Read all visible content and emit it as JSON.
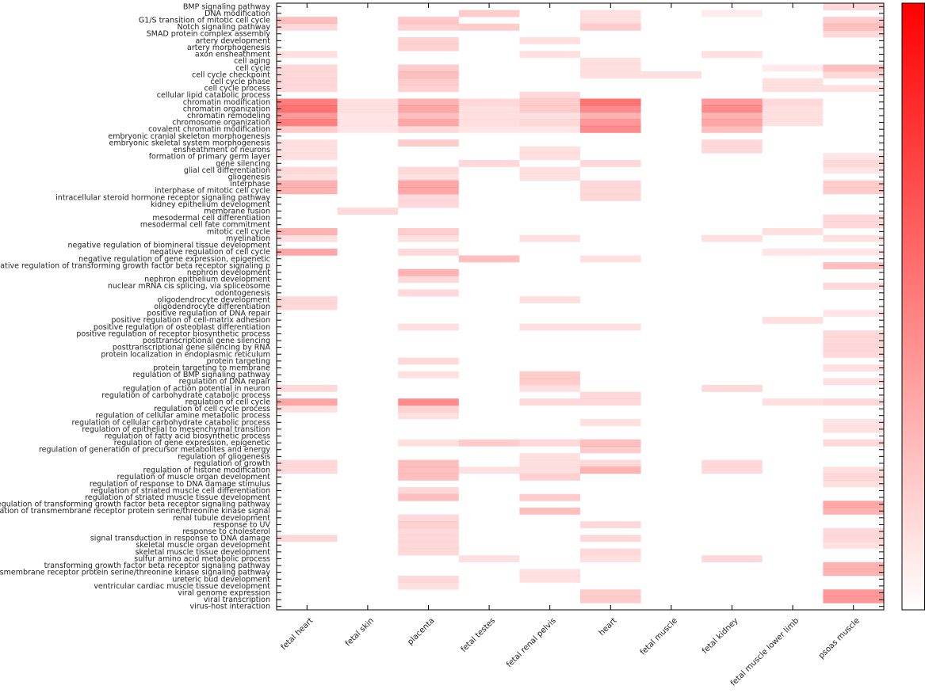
{
  "chart_data": {
    "type": "heatmap",
    "title": "",
    "xlabel": "",
    "ylabel": "",
    "grid": false,
    "colorbar": {
      "low": "#ffffff",
      "high": "#ff0000",
      "placement": "right",
      "tick_labels": []
    },
    "columns": [
      "fetal heart",
      "fetal skin",
      "placenta",
      "fetal testes",
      "fetal renal pelvis",
      "heart",
      "fetal muscle",
      "fetal kidney",
      "fetal muscle lower limb",
      "psoas muscle"
    ],
    "rows": [
      "BMP signaling pathway",
      "DNA modification",
      "G1/S transition of mitotic cell cycle",
      "Notch signaling pathway",
      "SMAD protein complex assembly",
      "artery development",
      "artery morphogenesis",
      "axon ensheathment",
      "cell aging",
      "cell cycle",
      "cell cycle checkpoint",
      "cell cycle phase",
      "cell cycle process",
      "cellular lipid catabolic process",
      "chromatin modification",
      "chromatin organization",
      "chromatin remodeling",
      "chromosome organization",
      "covalent chromatin modification",
      "embryonic cranial skeleton morphogenesis",
      "embryonic skeletal system morphogenesis",
      "ensheathment of neurons",
      "formation of primary germ layer",
      "gene silencing",
      "glial cell differentiation",
      "gliogenesis",
      "interphase",
      "interphase of mitotic cell cycle",
      "intracellular steroid hormone receptor signaling pathway",
      "kidney epithelium development",
      "membrane fusion",
      "mesodermal cell differentiation",
      "mesodermal cell fate commitment",
      "mitotic cell cycle",
      "myelination",
      "negative regulation of biomineral tissue development",
      "negative regulation of cell cycle",
      "negative regulation of gene expression, epigenetic",
      "negative regulation of transforming growth factor beta receptor signaling p",
      "nephron development",
      "nephron epithelium development",
      "nuclear mRNA cis splicing, via spliceosome",
      "odontogenesis",
      "oligodendrocyte development",
      "oligodendrocyte differentiation",
      "positive regulation of DNA repair",
      "positive regulation of cell-matrix adhesion",
      "positive regulation of osteoblast differentiation",
      "positive regulation of receptor biosynthetic process",
      "posttranscriptional gene silencing",
      "posttranscriptional gene silencing by RNA",
      "protein localization in endoplasmic reticulum",
      "protein targeting",
      "protein targeting to membrane",
      "regulation of BMP signaling pathway",
      "regulation of DNA repair",
      "regulation of action potential in neuron",
      "regulation of carbohydrate catabolic process",
      "regulation of cell cycle",
      "regulation of cell cycle process",
      "regulation of cellular amine metabolic process",
      "regulation of cellular carbohydrate catabolic process",
      "regulation of epithelial to mesenchymal transition",
      "regulation of fatty acid biosynthetic process",
      "regulation of gene expression, epigenetic",
      "regulation of generation of precursor metabolites and energy",
      "regulation of gliogenesis",
      "regulation of growth",
      "regulation of histone modification",
      "regulation of muscle organ development",
      "regulation of response to DNA damage stimulus",
      "regulation of striated muscle cell differentiation",
      "regulation of striated muscle tissue development",
      "regulation of transforming growth factor beta receptor signaling pathway",
      "regulation of transmembrane receptor protein serine/threonine kinase signal",
      "renal tubule development",
      "response to UV",
      "response to cholesterol",
      "signal transduction in response to DNA damage",
      "skeletal muscle organ development",
      "skeletal muscle tissue development",
      "sulfur amino acid metabolic process",
      "transforming growth factor beta receptor signaling pathway",
      "transmembrane receptor protein serine/threonine kinase signaling pathway",
      "ureteric bud development",
      "ventricular cardiac muscle tissue development",
      "viral genome expression",
      "viral transcription",
      "virus-host interaction"
    ],
    "values": [
      [
        0,
        0,
        0,
        0,
        0,
        0,
        0,
        0,
        0,
        0.15
      ],
      [
        0,
        0,
        0,
        0.2,
        0,
        0.12,
        0,
        0.08,
        0,
        0
      ],
      [
        0.25,
        0,
        0.22,
        0,
        0,
        0.12,
        0,
        0,
        0,
        0.2
      ],
      [
        0.15,
        0,
        0.18,
        0.2,
        0,
        0.2,
        0,
        0,
        0,
        0.25
      ],
      [
        0,
        0,
        0,
        0,
        0,
        0,
        0,
        0,
        0,
        0.15
      ],
      [
        0,
        0,
        0.18,
        0,
        0.12,
        0,
        0,
        0,
        0,
        0
      ],
      [
        0,
        0,
        0.18,
        0,
        0,
        0,
        0,
        0,
        0,
        0
      ],
      [
        0.12,
        0,
        0,
        0,
        0.12,
        0,
        0,
        0.12,
        0,
        0
      ],
      [
        0,
        0,
        0,
        0,
        0,
        0.12,
        0,
        0,
        0,
        0
      ],
      [
        0.15,
        0,
        0.2,
        0,
        0,
        0.12,
        0,
        0,
        0.08,
        0.25
      ],
      [
        0.15,
        0,
        0.25,
        0,
        0,
        0.12,
        0.12,
        0,
        0,
        0.15
      ],
      [
        0.15,
        0,
        0.2,
        0,
        0,
        0,
        0,
        0,
        0.12,
        0
      ],
      [
        0.15,
        0,
        0.18,
        0,
        0,
        0,
        0,
        0,
        0.12,
        0.12
      ],
      [
        0,
        0,
        0,
        0,
        0.15,
        0,
        0,
        0,
        0,
        0
      ],
      [
        0.5,
        0.12,
        0.3,
        0.15,
        0.2,
        0.55,
        0,
        0.4,
        0.15,
        0
      ],
      [
        0.55,
        0.12,
        0.35,
        0.12,
        0.2,
        0.45,
        0,
        0.45,
        0.12,
        0
      ],
      [
        0.4,
        0.1,
        0.25,
        0.12,
        0.12,
        0.3,
        0,
        0.3,
        0.12,
        0
      ],
      [
        0.5,
        0.1,
        0.35,
        0.12,
        0.15,
        0.4,
        0,
        0.35,
        0.12,
        0
      ],
      [
        0.2,
        0.1,
        0.15,
        0.1,
        0.1,
        0.45,
        0,
        0.25,
        0,
        0
      ],
      [
        0,
        0,
        0,
        0,
        0,
        0,
        0,
        0,
        0,
        0
      ],
      [
        0.12,
        0,
        0.2,
        0,
        0,
        0,
        0,
        0.15,
        0,
        0
      ],
      [
        0.12,
        0,
        0,
        0,
        0.12,
        0,
        0,
        0.15,
        0,
        0
      ],
      [
        0.12,
        0,
        0,
        0,
        0.12,
        0,
        0,
        0,
        0,
        0.1
      ],
      [
        0,
        0,
        0,
        0.15,
        0,
        0.15,
        0,
        0,
        0,
        0.15
      ],
      [
        0.15,
        0,
        0.15,
        0,
        0.12,
        0,
        0,
        0,
        0,
        0.1
      ],
      [
        0.12,
        0,
        0.12,
        0,
        0.12,
        0,
        0,
        0,
        0,
        0
      ],
      [
        0.3,
        0,
        0.35,
        0,
        0,
        0.15,
        0,
        0,
        0,
        0.2
      ],
      [
        0.3,
        0,
        0.35,
        0,
        0,
        0.15,
        0,
        0,
        0,
        0.2
      ],
      [
        0,
        0,
        0.15,
        0,
        0,
        0.15,
        0,
        0,
        0,
        0
      ],
      [
        0,
        0,
        0.15,
        0,
        0,
        0,
        0,
        0,
        0,
        0
      ],
      [
        0,
        0.15,
        0,
        0,
        0,
        0,
        0,
        0,
        0,
        0
      ],
      [
        0,
        0,
        0,
        0,
        0,
        0,
        0,
        0,
        0,
        0.15
      ],
      [
        0,
        0,
        0,
        0,
        0,
        0,
        0,
        0,
        0,
        0.15
      ],
      [
        0.3,
        0,
        0.2,
        0,
        0,
        0,
        0,
        0,
        0.12,
        0
      ],
      [
        0.12,
        0,
        0.12,
        0,
        0.12,
        0,
        0,
        0.12,
        0,
        0.12
      ],
      [
        0,
        0,
        0,
        0,
        0,
        0,
        0,
        0,
        0,
        0
      ],
      [
        0.35,
        0,
        0.15,
        0,
        0,
        0,
        0,
        0,
        0.1,
        0.1
      ],
      [
        0,
        0,
        0,
        0.25,
        0,
        0.12,
        0,
        0,
        0,
        0
      ],
      [
        0,
        0,
        0,
        0,
        0,
        0,
        0,
        0,
        0,
        0.25
      ],
      [
        0,
        0,
        0.3,
        0,
        0,
        0,
        0,
        0,
        0,
        0
      ],
      [
        0,
        0,
        0.15,
        0,
        0,
        0,
        0,
        0,
        0,
        0
      ],
      [
        0,
        0,
        0,
        0,
        0,
        0,
        0,
        0,
        0,
        0.15
      ],
      [
        0,
        0,
        0.15,
        0,
        0,
        0,
        0,
        0,
        0,
        0
      ],
      [
        0.15,
        0,
        0,
        0,
        0.12,
        0,
        0,
        0,
        0,
        0
      ],
      [
        0.15,
        0,
        0,
        0,
        0,
        0,
        0,
        0,
        0,
        0
      ],
      [
        0,
        0,
        0,
        0,
        0,
        0,
        0,
        0,
        0,
        0.1
      ],
      [
        0,
        0,
        0,
        0,
        0,
        0,
        0,
        0,
        0.12,
        0
      ],
      [
        0,
        0,
        0.12,
        0,
        0.12,
        0.12,
        0,
        0,
        0,
        0
      ],
      [
        0,
        0,
        0,
        0,
        0,
        0,
        0,
        0,
        0,
        0.15
      ],
      [
        0,
        0,
        0,
        0,
        0,
        0,
        0,
        0,
        0,
        0.15
      ],
      [
        0,
        0,
        0,
        0,
        0,
        0,
        0,
        0,
        0,
        0.15
      ],
      [
        0,
        0,
        0,
        0,
        0,
        0,
        0,
        0,
        0,
        0.15
      ],
      [
        0,
        0,
        0.15,
        0,
        0,
        0,
        0,
        0,
        0,
        0
      ],
      [
        0,
        0,
        0,
        0,
        0,
        0,
        0,
        0,
        0,
        0.12
      ],
      [
        0,
        0,
        0.12,
        0,
        0.2,
        0,
        0,
        0,
        0,
        0
      ],
      [
        0,
        0,
        0,
        0,
        0.2,
        0,
        0,
        0,
        0,
        0.12
      ],
      [
        0.15,
        0,
        0,
        0,
        0.12,
        0,
        0,
        0.15,
        0,
        0
      ],
      [
        0,
        0,
        0,
        0,
        0,
        0.15,
        0,
        0,
        0,
        0
      ],
      [
        0.35,
        0,
        0.45,
        0,
        0.15,
        0.15,
        0,
        0,
        0.12,
        0.15
      ],
      [
        0.12,
        0,
        0.18,
        0,
        0,
        0,
        0,
        0,
        0,
        0
      ],
      [
        0,
        0,
        0.12,
        0,
        0,
        0,
        0,
        0,
        0,
        0
      ],
      [
        0,
        0,
        0,
        0,
        0,
        0.12,
        0,
        0,
        0,
        0.1
      ],
      [
        0,
        0,
        0,
        0,
        0,
        0,
        0,
        0,
        0,
        0.12
      ],
      [
        0,
        0,
        0,
        0,
        0,
        0,
        0,
        0,
        0,
        0
      ],
      [
        0,
        0,
        0.12,
        0.2,
        0.15,
        0.25,
        0,
        0,
        0,
        0.15
      ],
      [
        0,
        0,
        0,
        0,
        0,
        0.2,
        0,
        0,
        0,
        0
      ],
      [
        0,
        0,
        0,
        0,
        0.12,
        0,
        0,
        0,
        0,
        0
      ],
      [
        0.15,
        0,
        0.25,
        0,
        0.12,
        0.15,
        0,
        0.15,
        0,
        0
      ],
      [
        0.15,
        0,
        0.25,
        0.12,
        0.12,
        0.3,
        0,
        0.15,
        0,
        0.12
      ],
      [
        0,
        0,
        0.25,
        0,
        0.18,
        0,
        0,
        0,
        0,
        0.15
      ],
      [
        0,
        0,
        0,
        0,
        0,
        0,
        0,
        0,
        0,
        0.12
      ],
      [
        0,
        0,
        0.15,
        0,
        0,
        0,
        0,
        0,
        0,
        0
      ],
      [
        0,
        0,
        0.25,
        0,
        0.2,
        0,
        0,
        0,
        0,
        0
      ],
      [
        0,
        0,
        0,
        0,
        0,
        0,
        0,
        0,
        0,
        0.35
      ],
      [
        0,
        0,
        0,
        0,
        0.25,
        0,
        0,
        0,
        0,
        0.3
      ],
      [
        0,
        0,
        0.15,
        0,
        0,
        0,
        0,
        0,
        0,
        0
      ],
      [
        0,
        0,
        0.18,
        0,
        0,
        0.15,
        0,
        0,
        0,
        0
      ],
      [
        0,
        0,
        0.15,
        0,
        0,
        0,
        0,
        0,
        0,
        0.15
      ],
      [
        0.15,
        0,
        0.15,
        0,
        0,
        0.15,
        0,
        0,
        0,
        0.15
      ],
      [
        0,
        0,
        0.15,
        0,
        0,
        0,
        0,
        0,
        0,
        0.12
      ],
      [
        0,
        0,
        0.15,
        0,
        0,
        0.15,
        0,
        0,
        0,
        0
      ],
      [
        0,
        0,
        0,
        0.12,
        0,
        0.12,
        0,
        0.15,
        0,
        0
      ],
      [
        0,
        0,
        0,
        0,
        0,
        0,
        0,
        0,
        0,
        0.3
      ],
      [
        0,
        0,
        0,
        0,
        0.12,
        0,
        0,
        0,
        0,
        0.3
      ],
      [
        0,
        0,
        0.15,
        0,
        0.12,
        0,
        0,
        0,
        0,
        0
      ],
      [
        0,
        0,
        0.12,
        0,
        0,
        0,
        0,
        0,
        0,
        0
      ],
      [
        0,
        0,
        0,
        0,
        0,
        0.2,
        0,
        0,
        0,
        0.4
      ],
      [
        0,
        0,
        0,
        0,
        0,
        0.2,
        0,
        0,
        0,
        0.4
      ],
      [
        0,
        0,
        0,
        0,
        0,
        0,
        0,
        0,
        0,
        0
      ]
    ]
  }
}
